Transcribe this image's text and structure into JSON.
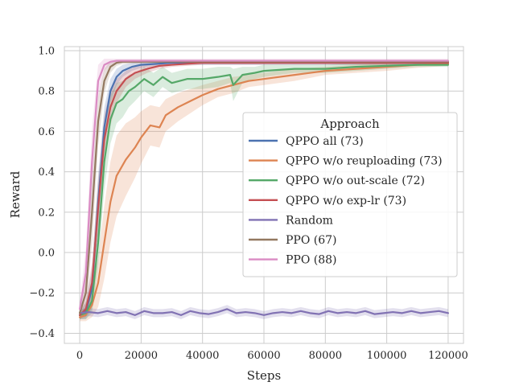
{
  "chart_data": {
    "type": "line",
    "xlabel": "Steps",
    "ylabel": "Reward",
    "xlim": [
      -5000,
      125000
    ],
    "ylim": [
      -0.45,
      1.02
    ],
    "xticks": [
      0,
      20000,
      40000,
      60000,
      80000,
      100000,
      120000
    ],
    "xtick_labels": [
      "0",
      "20000",
      "40000",
      "60000",
      "80000",
      "100000",
      "120000"
    ],
    "yticks": [
      -0.4,
      -0.2,
      0.0,
      0.2,
      0.4,
      0.6,
      0.8,
      1.0
    ],
    "ytick_labels": [
      "−0.4",
      "−0.2",
      "0.0",
      "0.2",
      "0.4",
      "0.6",
      "0.8",
      "1.0"
    ],
    "grid": true,
    "legend": {
      "title": "Approach",
      "placement": "center-right"
    },
    "series": [
      {
        "name": "QPPO all (73)",
        "color": "#4c72b0",
        "x": [
          0,
          2000,
          4000,
          6000,
          8000,
          10000,
          12000,
          14000,
          17000,
          20000,
          25000,
          30000,
          40000,
          60000,
          120000
        ],
        "y": [
          -0.31,
          -0.29,
          -0.18,
          0.25,
          0.62,
          0.8,
          0.87,
          0.9,
          0.92,
          0.93,
          0.935,
          0.94,
          0.94,
          0.94,
          0.94
        ],
        "band": [
          0.02,
          0.04,
          0.1,
          0.14,
          0.1,
          0.06,
          0.04,
          0.03,
          0.02,
          0.015,
          0.01,
          0.01,
          0.01,
          0.01,
          0.01
        ]
      },
      {
        "name": "QPPO w/o reuploading (73)",
        "color": "#dd8452",
        "x": [
          0,
          2000,
          4000,
          6000,
          8000,
          10000,
          12000,
          15000,
          18000,
          20000,
          23000,
          26000,
          28000,
          32000,
          36000,
          40000,
          45000,
          50000,
          55000,
          60000,
          70000,
          80000,
          90000,
          100000,
          110000,
          120000
        ],
        "y": [
          -0.32,
          -0.31,
          -0.26,
          -0.15,
          0.05,
          0.25,
          0.38,
          0.46,
          0.52,
          0.57,
          0.63,
          0.62,
          0.68,
          0.72,
          0.75,
          0.78,
          0.81,
          0.83,
          0.85,
          0.86,
          0.88,
          0.9,
          0.91,
          0.92,
          0.93,
          0.935
        ],
        "band": [
          0.02,
          0.03,
          0.06,
          0.12,
          0.18,
          0.2,
          0.2,
          0.18,
          0.15,
          0.13,
          0.1,
          0.1,
          0.08,
          0.07,
          0.06,
          0.05,
          0.04,
          0.04,
          0.03,
          0.03,
          0.03,
          0.02,
          0.02,
          0.02,
          0.015,
          0.01
        ]
      },
      {
        "name": "QPPO w/o out-scale (72)",
        "color": "#55a868",
        "x": [
          0,
          2000,
          4000,
          6000,
          8000,
          10000,
          12000,
          14000,
          16000,
          18000,
          21000,
          24000,
          27000,
          30000,
          35000,
          40000,
          45000,
          49000,
          50000,
          53000,
          57000,
          60000,
          70000,
          80000,
          90000,
          100000,
          110000,
          120000
        ],
        "y": [
          -0.31,
          -0.3,
          -0.24,
          0.05,
          0.45,
          0.66,
          0.74,
          0.76,
          0.8,
          0.82,
          0.86,
          0.83,
          0.87,
          0.84,
          0.86,
          0.86,
          0.87,
          0.88,
          0.83,
          0.88,
          0.89,
          0.9,
          0.91,
          0.91,
          0.92,
          0.925,
          0.93,
          0.93
        ],
        "band": [
          0.02,
          0.03,
          0.06,
          0.12,
          0.14,
          0.12,
          0.1,
          0.09,
          0.08,
          0.07,
          0.06,
          0.06,
          0.05,
          0.05,
          0.05,
          0.05,
          0.05,
          0.04,
          0.08,
          0.04,
          0.03,
          0.03,
          0.02,
          0.02,
          0.02,
          0.015,
          0.01,
          0.01
        ]
      },
      {
        "name": "QPPO w/o exp-lr (73)",
        "color": "#c44e52",
        "x": [
          0,
          2000,
          4000,
          6000,
          8000,
          10000,
          12000,
          15000,
          18000,
          22000,
          26000,
          30000,
          40000,
          60000,
          120000
        ],
        "y": [
          -0.31,
          -0.28,
          -0.15,
          0.22,
          0.56,
          0.72,
          0.8,
          0.86,
          0.89,
          0.91,
          0.925,
          0.93,
          0.94,
          0.94,
          0.94
        ],
        "band": [
          0.02,
          0.04,
          0.1,
          0.14,
          0.12,
          0.09,
          0.06,
          0.04,
          0.03,
          0.02,
          0.015,
          0.01,
          0.01,
          0.01,
          0.01
        ]
      },
      {
        "name": "Random",
        "color": "#8172b3",
        "x": [
          0,
          3000,
          6000,
          9000,
          12000,
          15000,
          18000,
          21000,
          24000,
          27000,
          30000,
          33000,
          36000,
          39000,
          42000,
          45000,
          48000,
          51000,
          54000,
          57000,
          60000,
          63000,
          66000,
          69000,
          72000,
          75000,
          78000,
          81000,
          84000,
          87000,
          90000,
          93000,
          96000,
          99000,
          102000,
          105000,
          108000,
          111000,
          114000,
          117000,
          120000
        ],
        "y": [
          -0.3,
          -0.295,
          -0.3,
          -0.29,
          -0.3,
          -0.295,
          -0.31,
          -0.29,
          -0.3,
          -0.3,
          -0.295,
          -0.31,
          -0.29,
          -0.3,
          -0.305,
          -0.295,
          -0.28,
          -0.3,
          -0.295,
          -0.3,
          -0.31,
          -0.3,
          -0.295,
          -0.3,
          -0.29,
          -0.3,
          -0.305,
          -0.29,
          -0.3,
          -0.295,
          -0.3,
          -0.29,
          -0.305,
          -0.3,
          -0.295,
          -0.3,
          -0.29,
          -0.3,
          -0.295,
          -0.29,
          -0.3
        ],
        "band": [
          0.02,
          0.02,
          0.02,
          0.02,
          0.02,
          0.02,
          0.02,
          0.02,
          0.02,
          0.02,
          0.02,
          0.02,
          0.02,
          0.02,
          0.02,
          0.02,
          0.02,
          0.02,
          0.02,
          0.02,
          0.02,
          0.02,
          0.02,
          0.02,
          0.02,
          0.02,
          0.02,
          0.02,
          0.02,
          0.02,
          0.02,
          0.02,
          0.02,
          0.02,
          0.02,
          0.02,
          0.02,
          0.02,
          0.02,
          0.02,
          0.02
        ]
      },
      {
        "name": "PPO (67)",
        "color": "#937860",
        "x": [
          0,
          2000,
          4000,
          6000,
          8000,
          10000,
          12000,
          14000,
          16000,
          20000,
          30000,
          60000,
          120000
        ],
        "y": [
          -0.3,
          -0.2,
          0.2,
          0.65,
          0.85,
          0.92,
          0.94,
          0.945,
          0.945,
          0.945,
          0.945,
          0.945,
          0.945
        ],
        "band": [
          0.03,
          0.1,
          0.16,
          0.12,
          0.06,
          0.03,
          0.015,
          0.01,
          0.01,
          0.01,
          0.01,
          0.01,
          0.01
        ]
      },
      {
        "name": "PPO (88)",
        "color": "#da8bc3",
        "x": [
          0,
          2000,
          4000,
          6000,
          8000,
          10000,
          12000,
          14000,
          18000,
          30000,
          60000,
          120000
        ],
        "y": [
          -0.28,
          -0.1,
          0.45,
          0.85,
          0.93,
          0.945,
          0.95,
          0.95,
          0.95,
          0.95,
          0.95,
          0.95
        ],
        "band": [
          0.03,
          0.12,
          0.16,
          0.08,
          0.03,
          0.015,
          0.01,
          0.01,
          0.01,
          0.01,
          0.01,
          0.01
        ]
      }
    ]
  }
}
